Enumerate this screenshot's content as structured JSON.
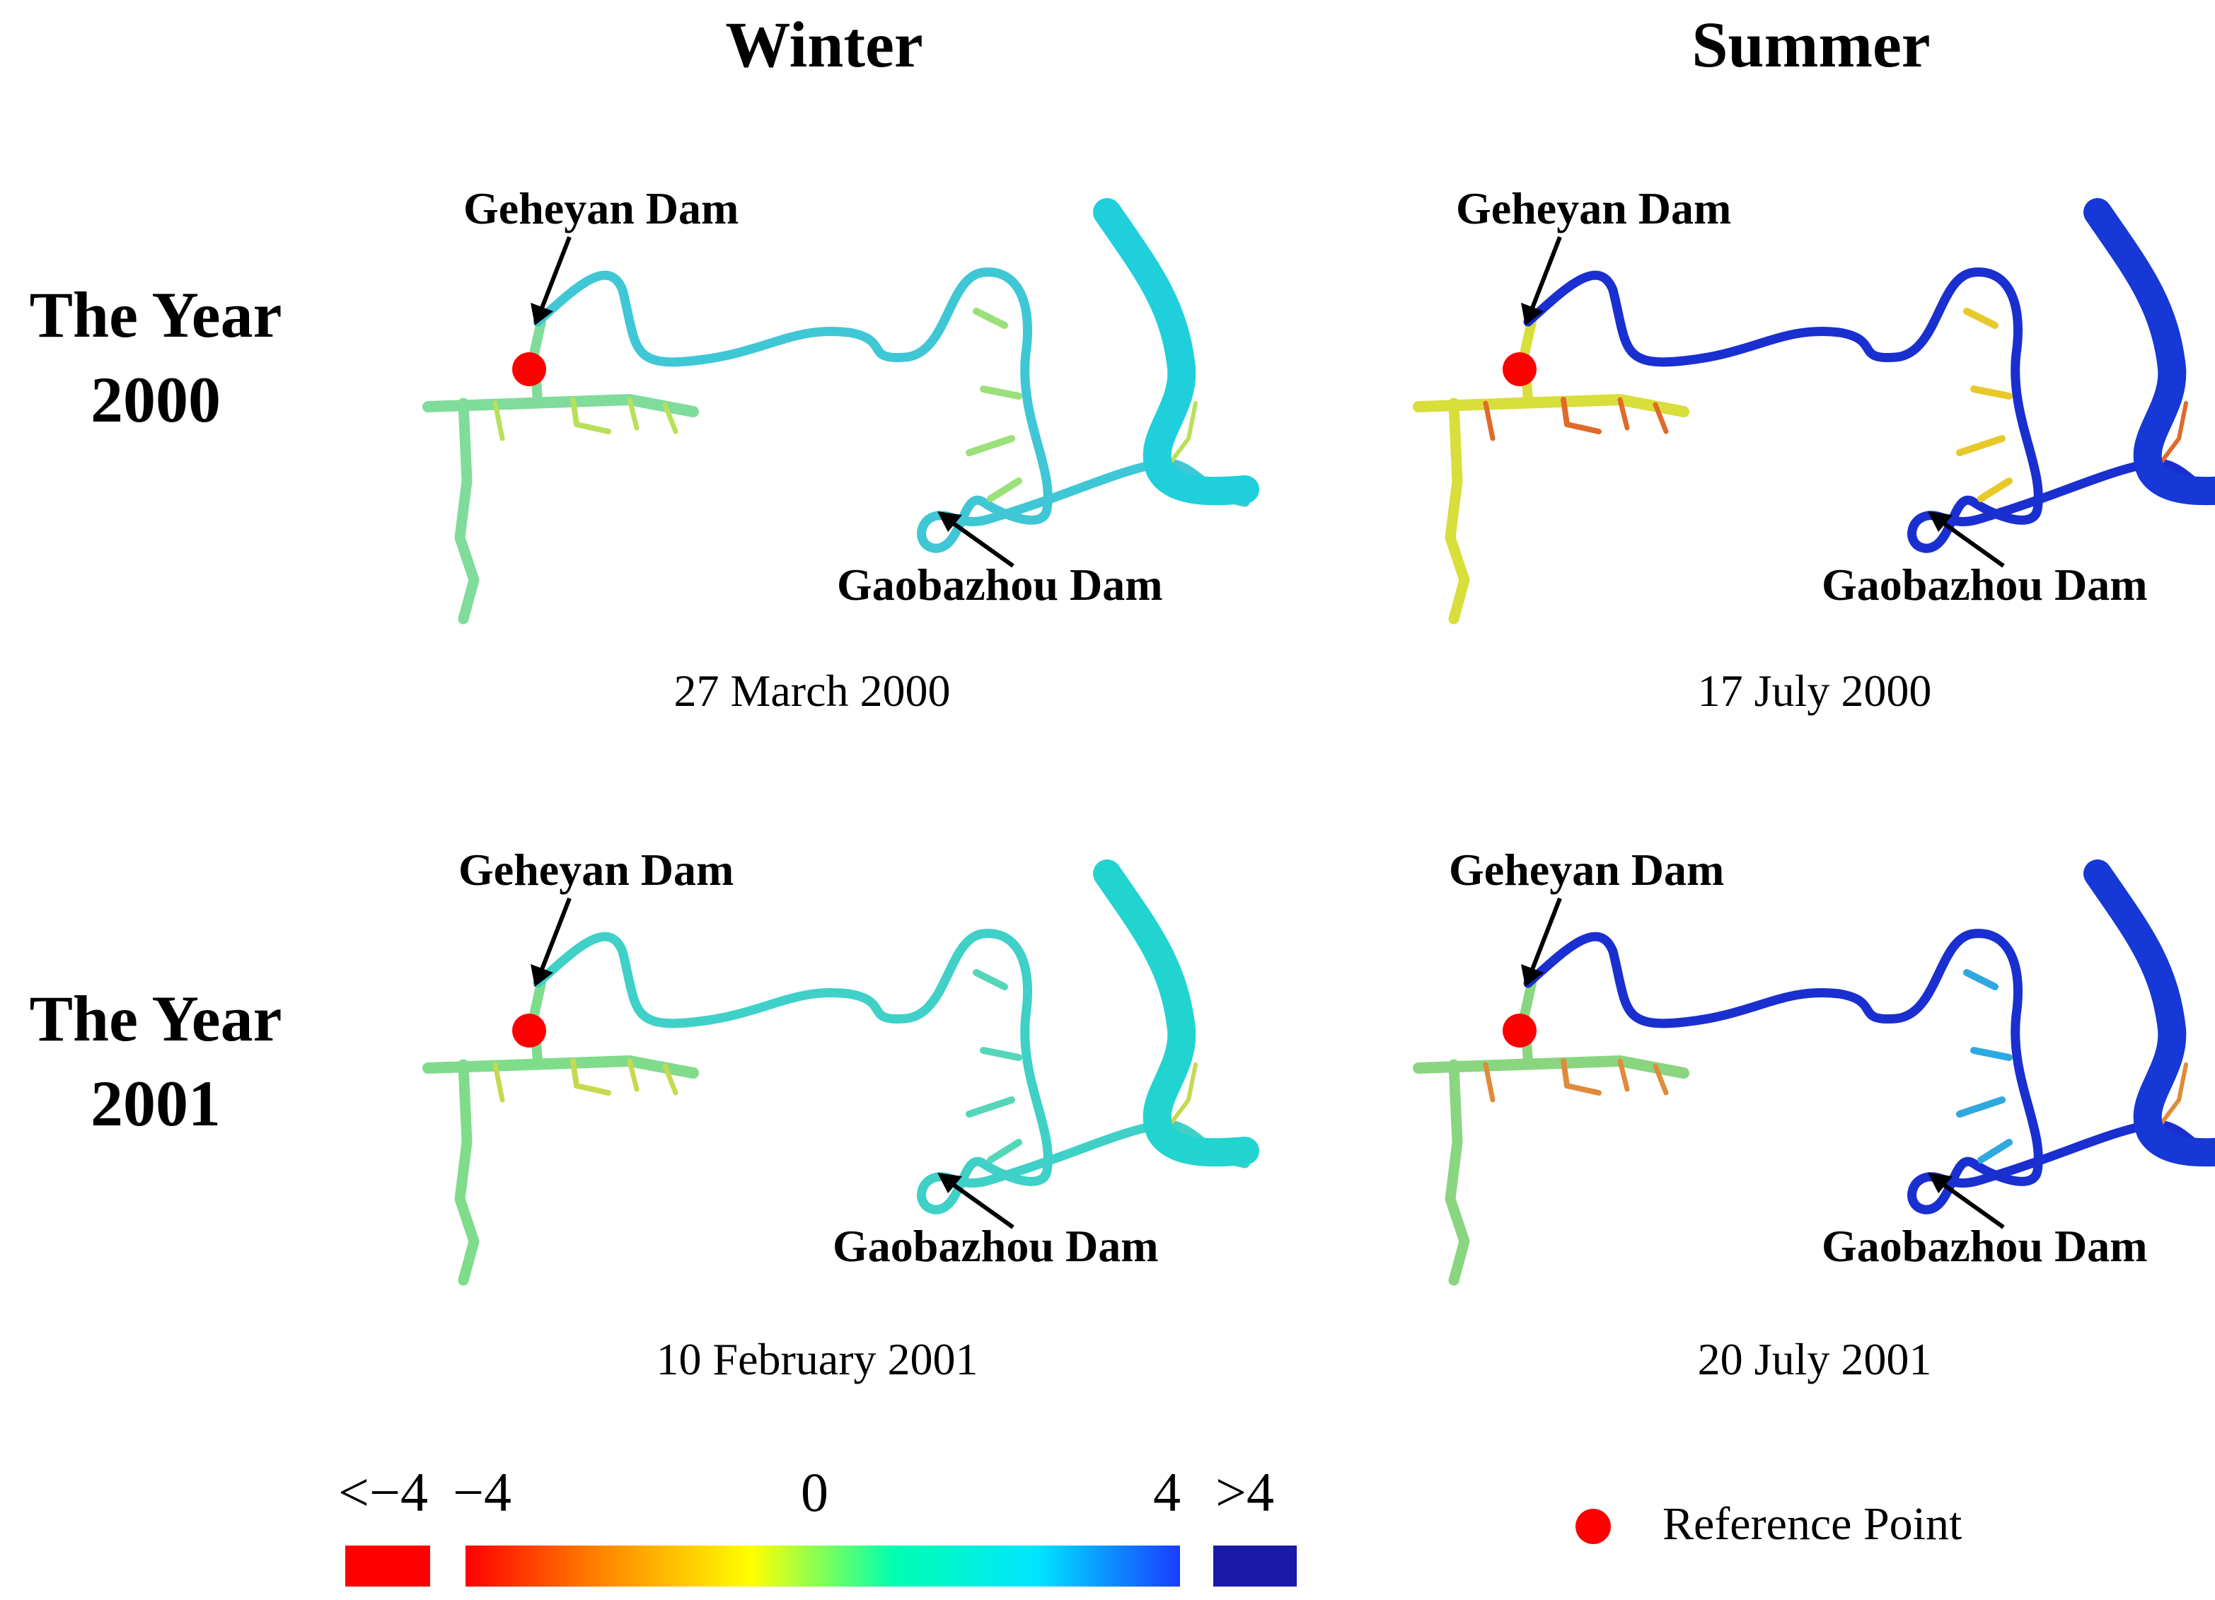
{
  "columns": {
    "winter": "Winter",
    "summer": "Summer"
  },
  "rows": [
    {
      "line1": "The Year",
      "line2": "2000"
    },
    {
      "line1": "The Year",
      "line2": "2001"
    }
  ],
  "labels": {
    "upstream_dam": "Geheyan Dam",
    "downstream_dam": "Gaobazhou Dam"
  },
  "dates": {
    "p2000_winter": "27 March 2000",
    "p2000_summer": "17 July 2000",
    "p2001_winter": "10 February 2001",
    "p2001_summer": "20 July 2001"
  },
  "panel_colors": {
    "p2000_winter": {
      "main": "#3fc7d6",
      "branch": "#7fdc9a",
      "mid": "#9be07a",
      "tail": "#56d3c2",
      "river": "#1fd0dc",
      "bits": "#b8e05a"
    },
    "p2000_summer": {
      "main": "#1a2fd0",
      "branch": "#d8de3a",
      "mid": "#e8c92a",
      "tail": "#1a2fd0",
      "river": "#1538d6",
      "bits": "#e06a2a"
    },
    "p2001_winter": {
      "main": "#3fd0c8",
      "branch": "#7fdc8a",
      "mid": "#55d6b8",
      "tail": "#2fc6d8",
      "river": "#22d4d0",
      "bits": "#c8d850"
    },
    "p2001_summer": {
      "main": "#1a2fd0",
      "branch": "#8ad680",
      "mid": "#2fa8e0",
      "tail": "#1a2fd0",
      "river": "#1538d6",
      "bits": "#e08a3a"
    }
  },
  "legend": {
    "below": "<−4",
    "min": "−4",
    "zero": "0",
    "max": "4",
    "above": ">4",
    "below_color": "#ff0000",
    "above_color": "#1a1aa8",
    "ramp": [
      "#ff0000",
      "#ff8c00",
      "#ffff00",
      "#00ffb0",
      "#00e5ff",
      "#1a3cff"
    ],
    "reference_label": "Reference Point",
    "reference_color": "#ff0000"
  }
}
